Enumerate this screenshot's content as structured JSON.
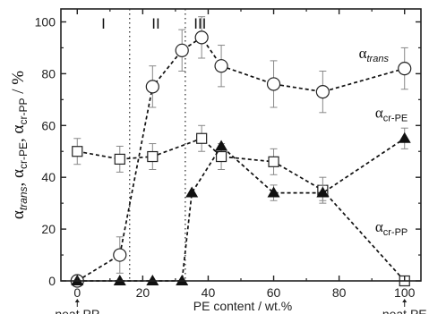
{
  "chart_data": {
    "type": "scatter",
    "xlabel": "PE content / wt.%",
    "ylabel": {
      "parts": [
        {
          "t": "α",
          "sub": "trans",
          "italic": true
        },
        {
          "t": ", ",
          "sub": ""
        },
        {
          "t": "α",
          "sub": "cr-PE",
          "italic": false
        },
        {
          "t": ", ",
          "sub": ""
        },
        {
          "t": "α",
          "sub": "cr-PP",
          "italic": false
        },
        {
          "t": " / %",
          "sub": ""
        }
      ]
    },
    "xlim": [
      -5,
      105
    ],
    "ylim": [
      0,
      105
    ],
    "x_ticks": [
      0,
      20,
      40,
      60,
      80,
      100
    ],
    "y_ticks": [
      0,
      20,
      40,
      60,
      80,
      100
    ],
    "x_tick_labels": [
      "0",
      "20",
      "40",
      "60",
      "80",
      "100"
    ],
    "y_tick_labels": [
      "0",
      "20",
      "40",
      "60",
      "80",
      "100"
    ],
    "end_annotations": [
      {
        "x": 0,
        "text": "neat PP"
      },
      {
        "x": 100,
        "text": "neat PE"
      }
    ],
    "region_dividers": [
      16,
      33
    ],
    "regions": [
      {
        "label": "I",
        "x": 8
      },
      {
        "label": "II",
        "x": 24
      },
      {
        "label": "III",
        "x": 37.5
      }
    ],
    "series": [
      {
        "name_main": "α",
        "name_sub": "trans",
        "sub_italic": true,
        "marker": "circle",
        "label_pos": {
          "x": 86,
          "y": 86
        },
        "x": [
          0,
          13,
          23,
          32,
          38,
          44,
          60,
          75,
          100
        ],
        "y": [
          0,
          10,
          75,
          89,
          94,
          83,
          76,
          73,
          82
        ],
        "err": [
          0,
          7,
          8,
          8,
          8,
          8,
          9,
          8,
          8
        ]
      },
      {
        "name_main": "α",
        "name_sub": "cr-PE",
        "sub_italic": false,
        "marker": "square",
        "label_pos": {
          "x": 91,
          "y": 63
        },
        "x": [
          0,
          13,
          23,
          38,
          44,
          60,
          75,
          100
        ],
        "y": [
          50,
          47,
          48,
          55,
          48,
          46,
          35,
          0
        ],
        "err": [
          5,
          5,
          5,
          5,
          5,
          5,
          5,
          0
        ]
      },
      {
        "name_main": "α",
        "name_sub": "cr-PP",
        "sub_italic": false,
        "marker": "triangle",
        "label_pos": {
          "x": 91,
          "y": 19
        },
        "x": [
          0,
          13,
          23,
          32,
          35,
          44,
          60,
          75,
          100
        ],
        "y": [
          0,
          0,
          0,
          0,
          34,
          52,
          34,
          34,
          55
        ],
        "err": [
          0,
          0,
          0,
          0,
          0,
          0,
          3,
          3,
          4
        ]
      }
    ]
  }
}
